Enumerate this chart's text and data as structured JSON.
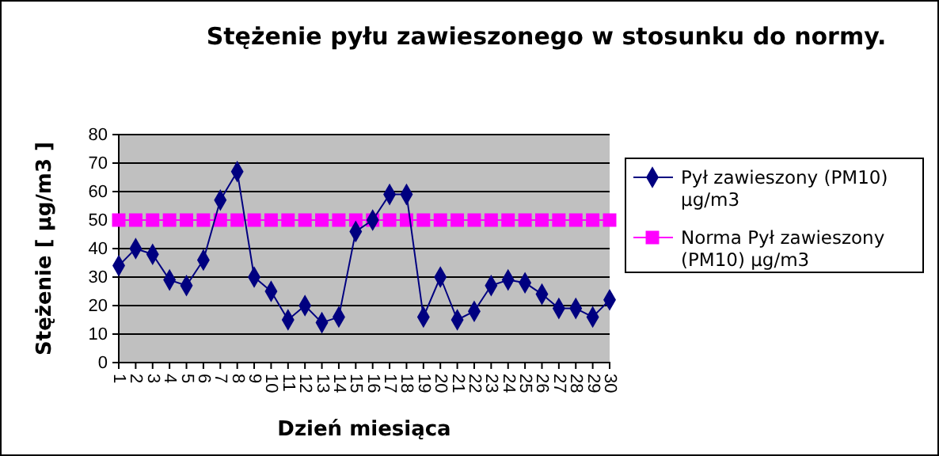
{
  "chart_data": {
    "type": "line",
    "title": "Stężenie pyłu zawieszonego w stosunku do normy.",
    "xlabel": "Dzień miesiąca",
    "ylabel": "Stężenie [ µg/m3 ]",
    "categories": [
      "1",
      "2",
      "3",
      "4",
      "5",
      "6",
      "7",
      "8",
      "9",
      "10",
      "11",
      "12",
      "13",
      "14",
      "15",
      "16",
      "17",
      "18",
      "19",
      "20",
      "21",
      "22",
      "23",
      "24",
      "25",
      "26",
      "27",
      "28",
      "29",
      "30"
    ],
    "series": [
      {
        "name": "Pył zawieszony (PM10) µg/m3",
        "color": "#000080",
        "marker": "diamond",
        "values": [
          34,
          40,
          38,
          29,
          27,
          36,
          57,
          67,
          30,
          25,
          15,
          20,
          14,
          16,
          46,
          50,
          59,
          59,
          16,
          30,
          15,
          18,
          27,
          29,
          28,
          24,
          19,
          19,
          16,
          22
        ]
      },
      {
        "name": "Norma Pył zawieszony (PM10) µg/m3",
        "color": "#ff00ff",
        "marker": "square",
        "values": [
          50,
          50,
          50,
          50,
          50,
          50,
          50,
          50,
          50,
          50,
          50,
          50,
          50,
          50,
          50,
          50,
          50,
          50,
          50,
          50,
          50,
          50,
          50,
          50,
          50,
          50,
          50,
          50,
          50,
          50
        ]
      }
    ],
    "ylim": [
      0,
      80
    ],
    "yticks": [
      0,
      10,
      20,
      30,
      40,
      50,
      60,
      70,
      80
    ],
    "grid": "y",
    "legend": "right"
  }
}
